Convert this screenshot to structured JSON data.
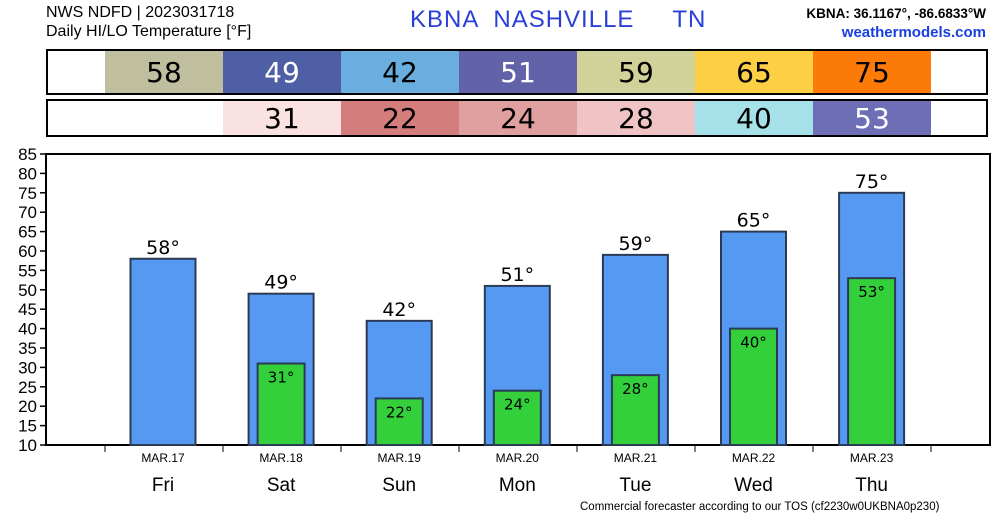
{
  "header": {
    "line1": "NWS NDFD | 2023031718",
    "line2": "Daily HI/LO Temperature [°F]",
    "station": "KBNA  NASHVILLE     TN",
    "coords": "KBNA: 36.1167°, -86.6833°W",
    "site": "weathermodels.com"
  },
  "footer": "Commercial forecaster according to our TOS (cf2230w0UKBNA0p230)",
  "hi_strip": [
    {
      "value": "58",
      "color": "#bfbfa0",
      "text_color": "#000000"
    },
    {
      "value": "49",
      "color": "#4f5fa6",
      "text_color": "#ffffff"
    },
    {
      "value": "42",
      "color": "#6aaee0",
      "text_color": "#000000"
    },
    {
      "value": "51",
      "color": "#6262a8",
      "text_color": "#ffffff"
    },
    {
      "value": "59",
      "color": "#d1d19a",
      "text_color": "#000000"
    },
    {
      "value": "65",
      "color": "#fccf44",
      "text_color": "#000000"
    },
    {
      "value": "75",
      "color": "#fc7a08",
      "text_color": "#000000"
    }
  ],
  "lo_strip": [
    {
      "value": "",
      "color": "#ffffff",
      "text_color": "#000000"
    },
    {
      "value": "31",
      "color": "#fbe2e2",
      "text_color": "#000000"
    },
    {
      "value": "22",
      "color": "#d47d7d",
      "text_color": "#000000"
    },
    {
      "value": "24",
      "color": "#e0a0a0",
      "text_color": "#000000"
    },
    {
      "value": "28",
      "color": "#f0c4c4",
      "text_color": "#000000"
    },
    {
      "value": "40",
      "color": "#a6e1ea",
      "text_color": "#000000"
    },
    {
      "value": "53",
      "color": "#6e6eb6",
      "text_color": "#ffffff"
    }
  ],
  "chart_data": {
    "type": "bar",
    "categories": [
      "Fri",
      "Sat",
      "Sun",
      "Mon",
      "Tue",
      "Wed",
      "Thu"
    ],
    "dates": [
      "MAR.17",
      "MAR.18",
      "MAR.19",
      "MAR.20",
      "MAR.21",
      "MAR.22",
      "MAR.23"
    ],
    "series": [
      {
        "values": [
          58,
          49,
          42,
          51,
          59,
          65,
          75
        ],
        "labels": [
          "58°",
          "49°",
          "42°",
          "51°",
          "59°",
          "65°",
          "75°"
        ],
        "color": "#5599f2"
      },
      {
        "values": [
          null,
          31,
          22,
          24,
          28,
          40,
          53
        ],
        "labels": [
          "",
          "31°",
          "22°",
          "24°",
          "28°",
          "40°",
          "53°"
        ],
        "color": "#33d03c"
      }
    ],
    "ylim": [
      10,
      85
    ],
    "yticks": [
      "10",
      "15",
      "20",
      "25",
      "30",
      "35",
      "40",
      "45",
      "50",
      "55",
      "60",
      "65",
      "70",
      "75",
      "80",
      "85"
    ],
    "grid": false
  }
}
